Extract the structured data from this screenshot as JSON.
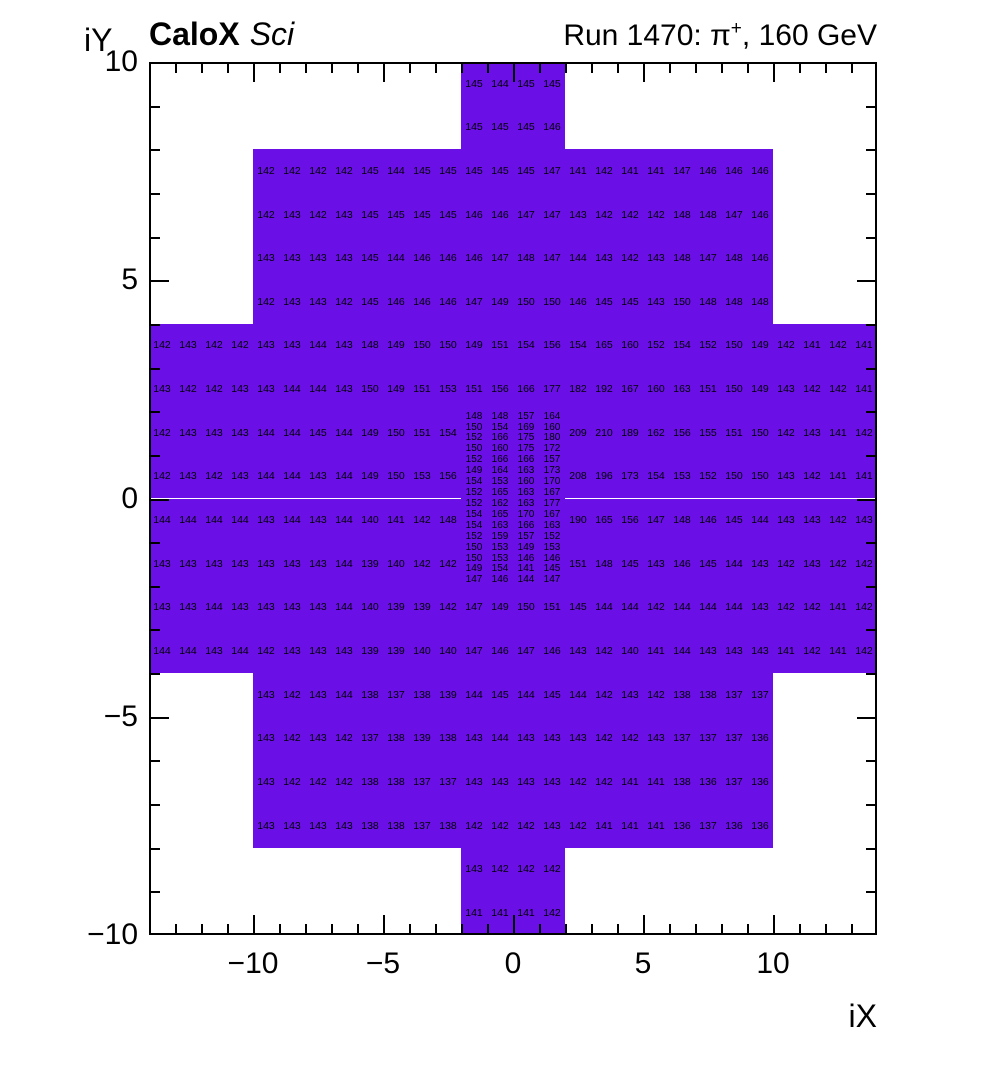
{
  "header": {
    "experiment": "CaloX",
    "detector": "Sci",
    "run_prefix": "Run 1470:  π",
    "charge_sup": "+",
    "energy_suffix": ", 160 GeV"
  },
  "axes": {
    "x_title": "iX",
    "y_title": "iY",
    "x_tick_values": [
      -10,
      -5,
      0,
      5,
      10
    ],
    "x_tick_labels": [
      "−10",
      "−5",
      "0",
      "5",
      "10"
    ],
    "y_tick_values": [
      -10,
      -5,
      0,
      5,
      10
    ],
    "y_tick_labels": [
      "−10",
      "−5",
      "0",
      "5",
      "10"
    ]
  },
  "colors": {
    "cell_fill": "#6A0FE6",
    "frame": "#000000",
    "text": "#000000"
  },
  "chart_data": {
    "type": "heatmap",
    "xlim": [
      -14,
      14
    ],
    "ylim": [
      -10,
      10
    ],
    "grid": false,
    "rows": [
      {
        "iy": 9,
        "segments": [
          {
            "x0": -2,
            "values": [
              145,
              144,
              145,
              145
            ]
          }
        ]
      },
      {
        "iy": 8,
        "segments": [
          {
            "x0": -2,
            "values": [
              145,
              145,
              145,
              146
            ]
          }
        ]
      },
      {
        "iy": 7,
        "segments": [
          {
            "x0": -10,
            "values": [
              142,
              142,
              142,
              142,
              145,
              144,
              145,
              145,
              145,
              145,
              145,
              147,
              141,
              142,
              141,
              141,
              147,
              146,
              146,
              146
            ]
          }
        ]
      },
      {
        "iy": 6,
        "segments": [
          {
            "x0": -10,
            "values": [
              142,
              143,
              142,
              143,
              145,
              145,
              145,
              145,
              146,
              146,
              147,
              147,
              143,
              142,
              142,
              142,
              148,
              148,
              147,
              146
            ]
          }
        ]
      },
      {
        "iy": 5,
        "segments": [
          {
            "x0": -10,
            "values": [
              143,
              143,
              143,
              143,
              145,
              144,
              146,
              146,
              146,
              147,
              148,
              147,
              144,
              143,
              142,
              143,
              148,
              147,
              148,
              146
            ]
          }
        ]
      },
      {
        "iy": 4,
        "segments": [
          {
            "x0": -10,
            "values": [
              142,
              143,
              143,
              142,
              145,
              146,
              146,
              146,
              147,
              149,
              150,
              150,
              146,
              145,
              145,
              143,
              150,
              148,
              148,
              148
            ]
          }
        ]
      },
      {
        "iy": 3,
        "segments": [
          {
            "x0": -14,
            "values": [
              142,
              143,
              142,
              142,
              143,
              143,
              144,
              143,
              148,
              149,
              150,
              150,
              149,
              151,
              154,
              156,
              154,
              165,
              160,
              152,
              154,
              152,
              150,
              149,
              142,
              141,
              142,
              141
            ]
          }
        ]
      },
      {
        "iy": 2,
        "segments": [
          {
            "x0": -14,
            "values": [
              143,
              142,
              142,
              143,
              143,
              144,
              144,
              143,
              150,
              149,
              151,
              153,
              151,
              156,
              166,
              177,
              182,
              192,
              167,
              160,
              163,
              151,
              150,
              149,
              143,
              142,
              142,
              141
            ]
          }
        ]
      },
      {
        "iy": 1,
        "segments": [
          {
            "x0": -14,
            "values": [
              142,
              143,
              143,
              143,
              144,
              144,
              145,
              144,
              149,
              150,
              151,
              154
            ]
          },
          {
            "x0": 2,
            "values": [
              209,
              210,
              189,
              162,
              156,
              155,
              151,
              150,
              142,
              143,
              141,
              142
            ]
          }
        ]
      },
      {
        "iy": 0,
        "segments": [
          {
            "x0": -14,
            "values": [
              142,
              143,
              142,
              143,
              144,
              144,
              143,
              144,
              149,
              150,
              153,
              156
            ]
          },
          {
            "x0": 2,
            "values": [
              208,
              196,
              173,
              154,
              153,
              152,
              150,
              150,
              143,
              142,
              141,
              141
            ]
          }
        ]
      },
      {
        "iy": -1,
        "segments": [
          {
            "x0": -14,
            "values": [
              144,
              144,
              144,
              144,
              143,
              144,
              143,
              144,
              140,
              141,
              142,
              148
            ]
          },
          {
            "x0": 2,
            "values": [
              190,
              165,
              156,
              147,
              148,
              146,
              145,
              144,
              143,
              143,
              142,
              143
            ]
          }
        ]
      },
      {
        "iy": -2,
        "segments": [
          {
            "x0": -14,
            "values": [
              143,
              143,
              143,
              143,
              143,
              143,
              143,
              144,
              139,
              140,
              142,
              142
            ]
          },
          {
            "x0": 2,
            "values": [
              151,
              148,
              145,
              143,
              146,
              145,
              144,
              143,
              142,
              143,
              142,
              142
            ]
          }
        ]
      },
      {
        "iy": -3,
        "segments": [
          {
            "x0": -14,
            "values": [
              143,
              143,
              144,
              143,
              143,
              143,
              143,
              144,
              140,
              139,
              139,
              142,
              147,
              149,
              150,
              151,
              145,
              144,
              144,
              142,
              144,
              144,
              144,
              143,
              142,
              142,
              141,
              142
            ]
          }
        ]
      },
      {
        "iy": -4,
        "segments": [
          {
            "x0": -14,
            "values": [
              144,
              144,
              143,
              144,
              142,
              143,
              143,
              143,
              139,
              139,
              140,
              140,
              147,
              146,
              147,
              146,
              143,
              142,
              140,
              141,
              144,
              143,
              143,
              143,
              141,
              142,
              141,
              142
            ]
          }
        ]
      },
      {
        "iy": -5,
        "segments": [
          {
            "x0": -10,
            "values": [
              143,
              142,
              143,
              144,
              138,
              137,
              138,
              139,
              144,
              145,
              144,
              145,
              144,
              142,
              143,
              142,
              138,
              138,
              137,
              137
            ]
          }
        ]
      },
      {
        "iy": -6,
        "segments": [
          {
            "x0": -10,
            "values": [
              143,
              142,
              143,
              142,
              137,
              138,
              139,
              138,
              143,
              144,
              143,
              143,
              143,
              142,
              142,
              143,
              137,
              137,
              137,
              136
            ]
          }
        ]
      },
      {
        "iy": -7,
        "segments": [
          {
            "x0": -10,
            "values": [
              143,
              142,
              142,
              142,
              138,
              138,
              137,
              137,
              143,
              143,
              143,
              143,
              142,
              142,
              141,
              141,
              138,
              136,
              137,
              136
            ]
          }
        ]
      },
      {
        "iy": -8,
        "segments": [
          {
            "x0": -10,
            "values": [
              143,
              143,
              143,
              143,
              138,
              138,
              137,
              138,
              142,
              142,
              142,
              143,
              142,
              141,
              141,
              141,
              136,
              137,
              136,
              136
            ]
          }
        ]
      },
      {
        "iy": -9,
        "segments": [
          {
            "x0": -2,
            "values": [
              143,
              142,
              142,
              142
            ]
          }
        ]
      },
      {
        "iy": -10,
        "segments": [
          {
            "x0": -2,
            "values": [
              141,
              141,
              141,
              142
            ]
          }
        ]
      }
    ],
    "fine_block": {
      "x0": -2,
      "y_top": 2,
      "col_width": 1,
      "row_height": 0.25,
      "rows": [
        [
          148,
          148,
          157,
          164
        ],
        [
          150,
          154,
          169,
          160
        ],
        [
          152,
          166,
          175,
          180
        ],
        [
          150,
          160,
          175,
          172
        ],
        [
          152,
          166,
          166,
          157
        ],
        [
          149,
          164,
          163,
          173
        ],
        [
          154,
          153,
          160,
          170
        ],
        [
          152,
          165,
          163,
          167
        ],
        [
          152,
          162,
          163,
          177
        ],
        [
          154,
          165,
          170,
          167
        ],
        [
          154,
          163,
          166,
          163
        ],
        [
          152,
          159,
          157,
          152
        ],
        [
          150,
          153,
          149,
          153
        ],
        [
          150,
          153,
          146,
          146
        ],
        [
          149,
          154,
          141,
          145
        ],
        [
          147,
          146,
          144,
          147
        ]
      ]
    }
  }
}
